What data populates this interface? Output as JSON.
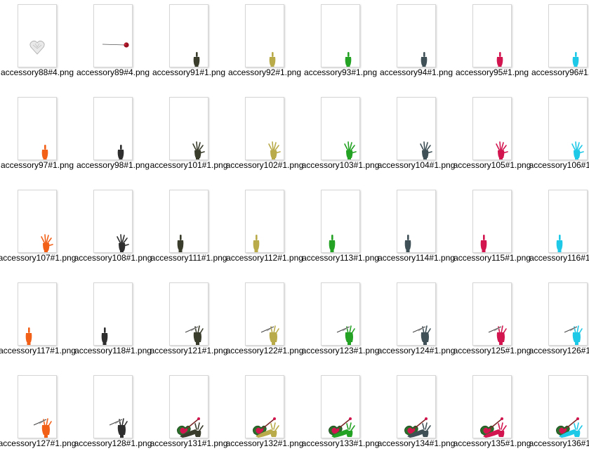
{
  "files": [
    {
      "name": "accessory88#4.png",
      "art": "heart-icon",
      "color": "#d8d8d8"
    },
    {
      "name": "accessory89#4.png",
      "art": "rose-icon",
      "color": "#9b1020"
    },
    {
      "name": "accessory91#1.png",
      "art": "finger-hand-icon",
      "color": "#3a3d2c"
    },
    {
      "name": "accessory92#1.png",
      "art": "finger-hand-icon",
      "color": "#b9aa4a"
    },
    {
      "name": "accessory93#1.png",
      "art": "finger-hand-icon",
      "color": "#23a223"
    },
    {
      "name": "accessory94#1.png",
      "art": "finger-hand-icon",
      "color": "#3f5157"
    },
    {
      "name": "accessory95#1.png",
      "art": "finger-hand-icon",
      "color": "#d2154f"
    },
    {
      "name": "accessory96#1.png",
      "art": "finger-hand-icon",
      "color": "#1ec9e8"
    },
    {
      "name": "accessory97#1.png",
      "art": "finger-hand-icon",
      "color": "#f26018"
    },
    {
      "name": "accessory98#1.png",
      "art": "finger-hand-icon",
      "color": "#2e2e2e"
    },
    {
      "name": "accessory101#1.png",
      "art": "open-hand-icon",
      "color": "#3a3d2c"
    },
    {
      "name": "accessory102#1.png",
      "art": "open-hand-icon",
      "color": "#b9aa4a"
    },
    {
      "name": "accessory103#1.png",
      "art": "open-hand-icon",
      "color": "#23a223"
    },
    {
      "name": "accessory104#1.png",
      "art": "open-hand-icon",
      "color": "#3f5157"
    },
    {
      "name": "accessory105#1.png",
      "art": "open-hand-icon",
      "color": "#d2154f"
    },
    {
      "name": "accessory106#1.png",
      "art": "open-hand-icon",
      "color": "#1ec9e8"
    },
    {
      "name": "accessory107#1.png",
      "art": "open-hand-icon",
      "color": "#f26018"
    },
    {
      "name": "accessory108#1.png",
      "art": "open-hand-icon",
      "color": "#2e2e2e"
    },
    {
      "name": "accessory111#1.png",
      "art": "left-finger-hand-icon",
      "color": "#3a3d2c"
    },
    {
      "name": "accessory112#1.png",
      "art": "left-finger-hand-icon",
      "color": "#b9aa4a"
    },
    {
      "name": "accessory113#1.png",
      "art": "left-finger-hand-icon",
      "color": "#23a223"
    },
    {
      "name": "accessory114#1.png",
      "art": "left-finger-hand-icon",
      "color": "#3f5157"
    },
    {
      "name": "accessory115#1.png",
      "art": "left-finger-hand-icon",
      "color": "#d2154f"
    },
    {
      "name": "accessory116#1.png",
      "art": "left-finger-hand-icon",
      "color": "#1ec9e8"
    },
    {
      "name": "accessory117#1.png",
      "art": "left-finger-hand-icon",
      "color": "#f26018"
    },
    {
      "name": "accessory118#1.png",
      "art": "left-finger-hand-icon",
      "color": "#2e2e2e"
    },
    {
      "name": "accessory121#1.png",
      "art": "pen-hand-icon",
      "color": "#3a3d2c"
    },
    {
      "name": "accessory122#1.png",
      "art": "pen-hand-icon",
      "color": "#b9aa4a"
    },
    {
      "name": "accessory123#1.png",
      "art": "pen-hand-icon",
      "color": "#23a223"
    },
    {
      "name": "accessory124#1.png",
      "art": "pen-hand-icon",
      "color": "#3f5157"
    },
    {
      "name": "accessory125#1.png",
      "art": "pen-hand-icon",
      "color": "#d2154f"
    },
    {
      "name": "accessory126#1.png",
      "art": "pen-hand-icon",
      "color": "#1ec9e8"
    },
    {
      "name": "accessory127#1.png",
      "art": "pen-hand-icon",
      "color": "#f26018"
    },
    {
      "name": "accessory128#1.png",
      "art": "pen-hand-icon",
      "color": "#2e2e2e"
    },
    {
      "name": "accessory131#1.png",
      "art": "violin-hand-icon",
      "color": "#3a3d2c"
    },
    {
      "name": "accessory132#1.png",
      "art": "violin-hand-icon",
      "color": "#b9aa4a"
    },
    {
      "name": "accessory133#1.png",
      "art": "violin-hand-icon",
      "color": "#23a223"
    },
    {
      "name": "accessory134#1.png",
      "art": "violin-hand-icon",
      "color": "#3f5157"
    },
    {
      "name": "accessory135#1.png",
      "art": "violin-hand-icon",
      "color": "#d2154f"
    },
    {
      "name": "accessory136#1.png",
      "art": "violin-hand-icon",
      "color": "#1ec9e8"
    }
  ]
}
